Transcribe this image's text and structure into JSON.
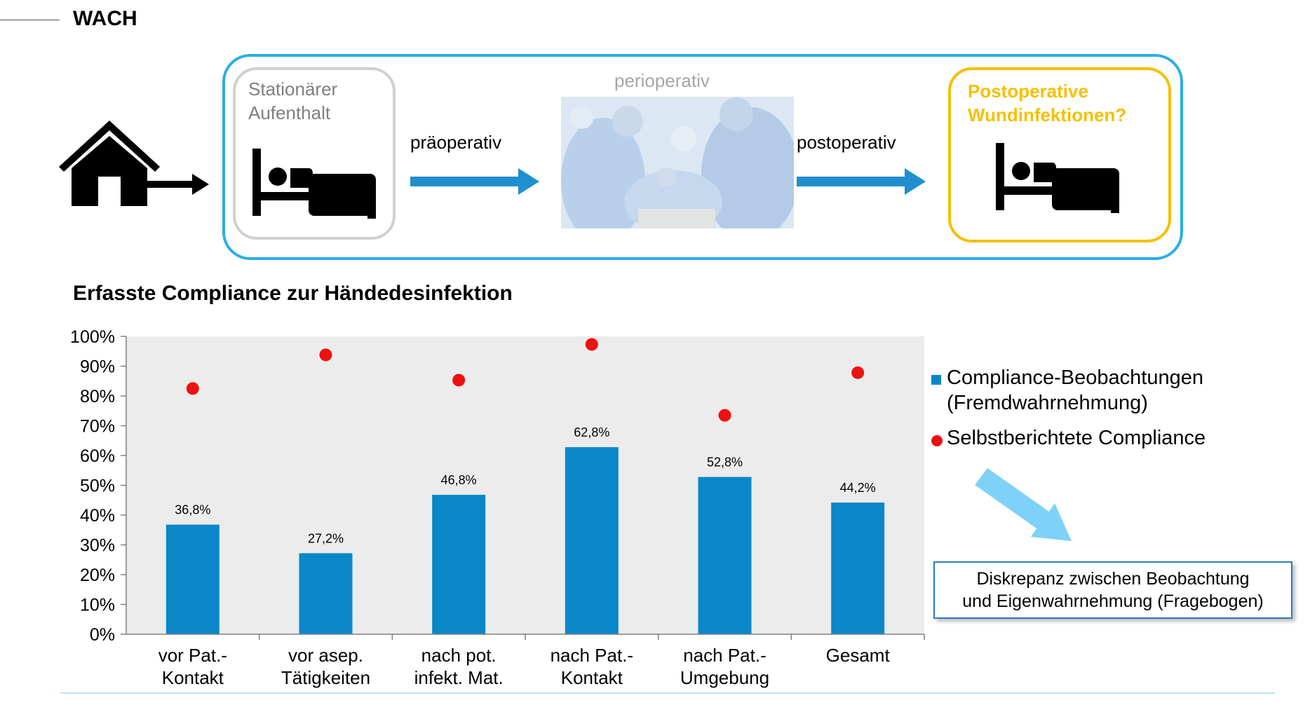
{
  "header": {
    "title": "WACH"
  },
  "flow": {
    "station_label": "Stationärer\nAufenthalt",
    "pre_label": "präoperativ",
    "periop_label": "perioperativ",
    "post_label": "postoperativ",
    "postop_label": "Postoperative\nWundinfektionen?",
    "colors": {
      "frame": "#29aee6",
      "arrow": "#1f8fd0",
      "highlight": "#f5c000"
    }
  },
  "chart_title": "Erfasste Compliance zur Händedesinfektion",
  "chart_data": {
    "type": "bar",
    "categories": [
      [
        "vor Pat.-",
        "Kontakt"
      ],
      [
        "vor asep.",
        "Tätigkeiten"
      ],
      [
        "nach pot.",
        "infekt. Mat."
      ],
      [
        "nach Pat.-",
        "Kontakt"
      ],
      [
        "nach Pat.-",
        "Umgebung"
      ],
      [
        "Gesamt"
      ]
    ],
    "series": [
      {
        "name": "Compliance-Beobachtungen (Fremdwahrnehmung)",
        "type": "bar",
        "color": "#0a87c9",
        "values": [
          36.8,
          27.2,
          46.8,
          62.8,
          52.8,
          44.2
        ],
        "labels": [
          "36,8%",
          "27,2%",
          "46,8%",
          "62,8%",
          "52,8%",
          "44,2%"
        ]
      },
      {
        "name": "Selbstberichtete Compliance",
        "type": "scatter",
        "color": "#ee1111",
        "values": [
          82.5,
          93.8,
          85.3,
          97.3,
          73.5,
          87.8
        ]
      }
    ],
    "ylim": [
      0,
      100
    ],
    "yticks": [
      "0%",
      "10%",
      "20%",
      "30%",
      "40%",
      "50%",
      "60%",
      "70%",
      "80%",
      "90%",
      "100%"
    ],
    "plot_background": "#ececec",
    "legend": {
      "position": "right",
      "items": [
        {
          "lines": [
            "Compliance-Beobachtungen",
            "(Fremdwahrnehmung)"
          ]
        },
        {
          "lines": [
            "Selbstberichtete Compliance"
          ]
        }
      ]
    }
  },
  "callout": {
    "line1": "Diskrepanz zwischen Beobachtung",
    "line2": "und Eigenwahrnehmung (Fragebogen)"
  }
}
